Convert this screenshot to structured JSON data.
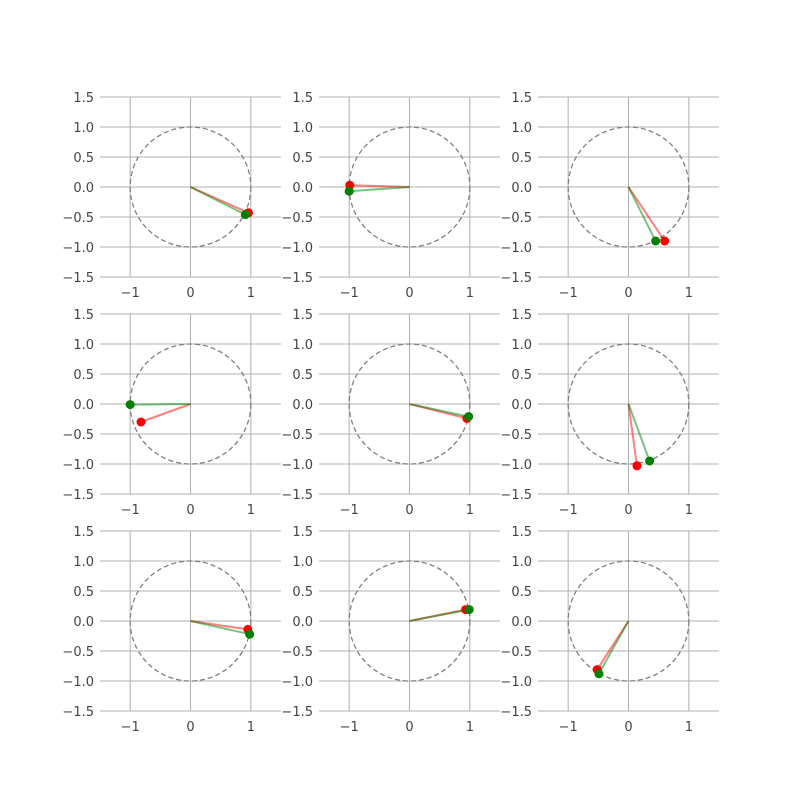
{
  "chart_data": [
    {
      "type": "scatter",
      "xlim": [
        -1.5,
        1.5
      ],
      "ylim": [
        -1.5,
        1.5
      ],
      "xticks": [
        "−1",
        "0",
        "1"
      ],
      "yticks": [
        "1.5",
        "1.0",
        "0.5",
        "0.0",
        "−0.5",
        "−1.0",
        "−1.5"
      ],
      "grid": true,
      "unit_circle": true,
      "series": [
        {
          "color": "#ff0000",
          "x": [
            0,
            0.96
          ],
          "y": [
            0,
            -0.43
          ]
        },
        {
          "color": "#008000",
          "x": [
            0,
            0.91
          ],
          "y": [
            0,
            -0.46
          ]
        }
      ]
    },
    {
      "type": "scatter",
      "xlim": [
        -1.5,
        1.5
      ],
      "ylim": [
        -1.5,
        1.5
      ],
      "xticks": [
        "−1",
        "0",
        "1"
      ],
      "yticks": [
        "1.5",
        "1.0",
        "0.5",
        "0.0",
        "−0.5",
        "−1.0",
        "−1.5"
      ],
      "grid": true,
      "unit_circle": true,
      "series": [
        {
          "color": "#ff0000",
          "x": [
            0,
            -0.99
          ],
          "y": [
            0,
            0.03
          ]
        },
        {
          "color": "#008000",
          "x": [
            0,
            -1.0
          ],
          "y": [
            0,
            -0.07
          ]
        }
      ]
    },
    {
      "type": "scatter",
      "xlim": [
        -1.5,
        1.5
      ],
      "ylim": [
        -1.5,
        1.5
      ],
      "xticks": [
        "−1",
        "0",
        "1"
      ],
      "yticks": [
        "1.5",
        "1.0",
        "0.5",
        "0.0",
        "−0.5",
        "−1.0",
        "−1.5"
      ],
      "grid": true,
      "unit_circle": true,
      "series": [
        {
          "color": "#ff0000",
          "x": [
            0,
            0.6
          ],
          "y": [
            0,
            -0.9
          ]
        },
        {
          "color": "#008000",
          "x": [
            0,
            0.45
          ],
          "y": [
            0,
            -0.9
          ]
        }
      ]
    },
    {
      "type": "scatter",
      "xlim": [
        -1.5,
        1.5
      ],
      "ylim": [
        -1.5,
        1.5
      ],
      "xticks": [
        "−1",
        "0",
        "1"
      ],
      "yticks": [
        "1.5",
        "1.0",
        "0.5",
        "0.0",
        "−0.5",
        "−1.0",
        "−1.5"
      ],
      "grid": true,
      "unit_circle": true,
      "series": [
        {
          "color": "#ff0000",
          "x": [
            0,
            -0.82
          ],
          "y": [
            0,
            -0.3
          ]
        },
        {
          "color": "#008000",
          "x": [
            0,
            -1.0
          ],
          "y": [
            0,
            -0.01
          ]
        }
      ]
    },
    {
      "type": "scatter",
      "xlim": [
        -1.5,
        1.5
      ],
      "ylim": [
        -1.5,
        1.5
      ],
      "xticks": [
        "−1",
        "0",
        "1"
      ],
      "yticks": [
        "1.5",
        "1.0",
        "0.5",
        "0.0",
        "−0.5",
        "−1.0",
        "−1.5"
      ],
      "grid": true,
      "unit_circle": true,
      "series": [
        {
          "color": "#ff0000",
          "x": [
            0,
            0.95
          ],
          "y": [
            0,
            -0.24
          ]
        },
        {
          "color": "#008000",
          "x": [
            0,
            0.98
          ],
          "y": [
            0,
            -0.21
          ]
        }
      ]
    },
    {
      "type": "scatter",
      "xlim": [
        -1.5,
        1.5
      ],
      "ylim": [
        -1.5,
        1.5
      ],
      "xticks": [
        "−1",
        "0",
        "1"
      ],
      "yticks": [
        "1.5",
        "1.0",
        "0.5",
        "0.0",
        "−0.5",
        "−1.0",
        "−1.5"
      ],
      "grid": true,
      "unit_circle": true,
      "series": [
        {
          "color": "#ff0000",
          "x": [
            0,
            0.14
          ],
          "y": [
            0,
            -1.03
          ]
        },
        {
          "color": "#008000",
          "x": [
            0,
            0.35
          ],
          "y": [
            0,
            -0.95
          ]
        }
      ]
    },
    {
      "type": "scatter",
      "xlim": [
        -1.5,
        1.5
      ],
      "ylim": [
        -1.5,
        1.5
      ],
      "xticks": [
        "−1",
        "0",
        "1"
      ],
      "yticks": [
        "1.5",
        "1.0",
        "0.5",
        "0.0",
        "−0.5",
        "−1.0",
        "−1.5"
      ],
      "grid": true,
      "unit_circle": true,
      "series": [
        {
          "color": "#ff0000",
          "x": [
            0,
            0.95
          ],
          "y": [
            0,
            -0.14
          ]
        },
        {
          "color": "#008000",
          "x": [
            0,
            0.98
          ],
          "y": [
            0,
            -0.22
          ]
        }
      ]
    },
    {
      "type": "scatter",
      "xlim": [
        -1.5,
        1.5
      ],
      "ylim": [
        -1.5,
        1.5
      ],
      "xticks": [
        "−1",
        "0",
        "1"
      ],
      "yticks": [
        "1.5",
        "1.0",
        "0.5",
        "0.0",
        "−0.5",
        "−1.0",
        "−1.5"
      ],
      "grid": true,
      "unit_circle": true,
      "series": [
        {
          "color": "#ff0000",
          "x": [
            0,
            0.93
          ],
          "y": [
            0,
            0.19
          ]
        },
        {
          "color": "#008000",
          "x": [
            0,
            0.99
          ],
          "y": [
            0,
            0.19
          ]
        }
      ]
    },
    {
      "type": "scatter",
      "xlim": [
        -1.5,
        1.5
      ],
      "ylim": [
        -1.5,
        1.5
      ],
      "xticks": [
        "−1",
        "0",
        "1"
      ],
      "yticks": [
        "1.5",
        "1.0",
        "0.5",
        "0.0",
        "−0.5",
        "−1.0",
        "−1.5"
      ],
      "grid": true,
      "unit_circle": true,
      "series": [
        {
          "color": "#ff0000",
          "x": [
            0,
            -0.52
          ],
          "y": [
            0,
            -0.81
          ]
        },
        {
          "color": "#008000",
          "x": [
            0,
            -0.49
          ],
          "y": [
            0,
            -0.88
          ]
        }
      ]
    }
  ]
}
